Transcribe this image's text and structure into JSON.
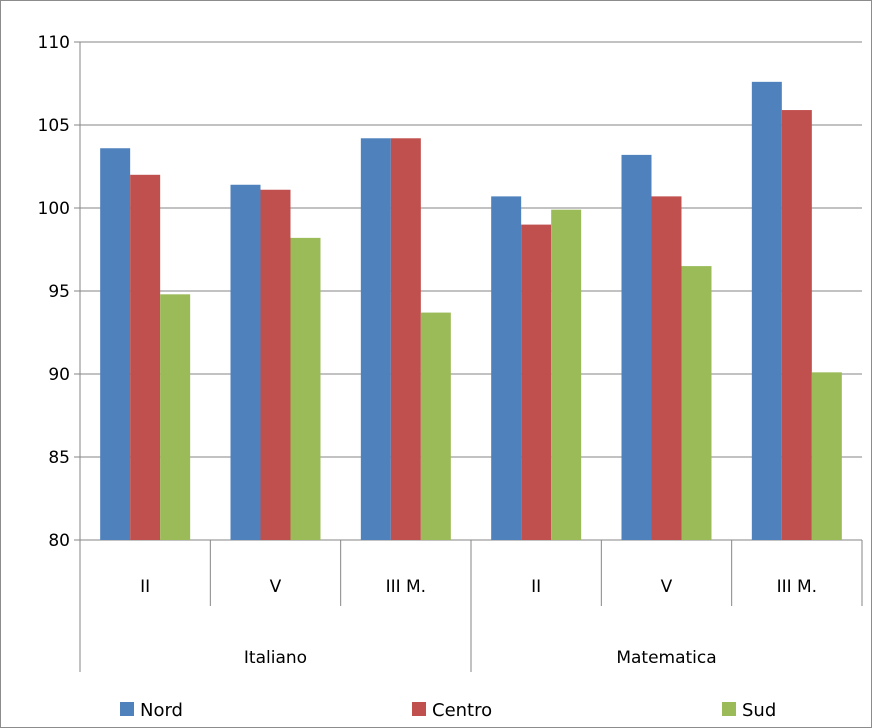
{
  "chart_data": {
    "type": "bar",
    "title": "",
    "xlabel": "",
    "ylabel": "",
    "ylim": [
      80,
      110
    ],
    "yticks": [
      80,
      85,
      90,
      95,
      100,
      105,
      110
    ],
    "grid": true,
    "legend_position": "bottom",
    "groups": [
      {
        "label": "Italiano",
        "categories": [
          "II",
          "V",
          "III M."
        ]
      },
      {
        "label": "Matematica",
        "categories": [
          "II",
          "V",
          "III M."
        ]
      }
    ],
    "series": [
      {
        "name": "Nord",
        "color": "#4f81bd",
        "values": [
          103.6,
          101.4,
          104.2,
          100.7,
          103.2,
          107.6
        ]
      },
      {
        "name": "Centro",
        "color": "#c0504d",
        "values": [
          102.0,
          101.1,
          104.2,
          99.0,
          100.7,
          105.9
        ]
      },
      {
        "name": "Sud",
        "color": "#9bbb59",
        "values": [
          94.8,
          98.2,
          93.7,
          99.9,
          96.5,
          90.1
        ]
      }
    ]
  }
}
